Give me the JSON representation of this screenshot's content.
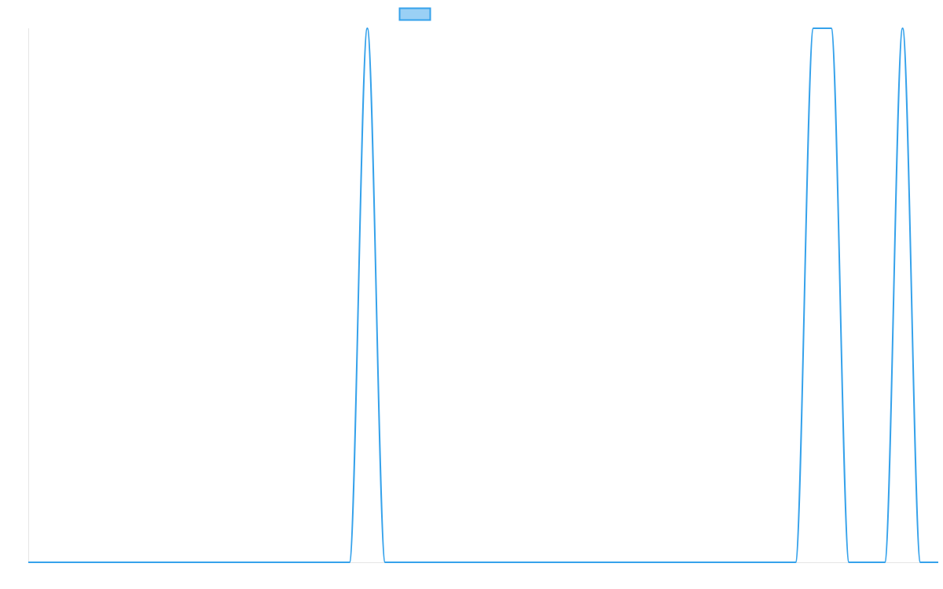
{
  "chart_data": {
    "type": "line",
    "title": "",
    "xlabel": "",
    "ylabel": "",
    "x": [
      0,
      1,
      2,
      3,
      4,
      5,
      6,
      7,
      8,
      9,
      10,
      11,
      12,
      13,
      14,
      15,
      16,
      17,
      18,
      19,
      20,
      21,
      22,
      23,
      24,
      25,
      26,
      27,
      28,
      29,
      30,
      31,
      32,
      33,
      34,
      35,
      36,
      37,
      38,
      39,
      40,
      41,
      42,
      43,
      44,
      45,
      46,
      47,
      48,
      49,
      50,
      51
    ],
    "series": [
      {
        "values": [
          0,
          0,
          0,
          0,
          0,
          0,
          0,
          0,
          0,
          0,
          0,
          0,
          0,
          0,
          0,
          0,
          0,
          0,
          0,
          1,
          0,
          0,
          0,
          0,
          0,
          0,
          0,
          0,
          0,
          0,
          0,
          0,
          0,
          0,
          0,
          0,
          0,
          0,
          0,
          0,
          0,
          0,
          0,
          0,
          1,
          1,
          0,
          0,
          0,
          1,
          0,
          0
        ],
        "color": "#36a2eb",
        "fill": "#9ad0f5"
      }
    ],
    "ylim": [
      0,
      1
    ],
    "grid": false,
    "axis_tick_labels": false,
    "legend": {
      "placement": "top",
      "labels": [
        ""
      ]
    },
    "interpolation": "monotone"
  }
}
